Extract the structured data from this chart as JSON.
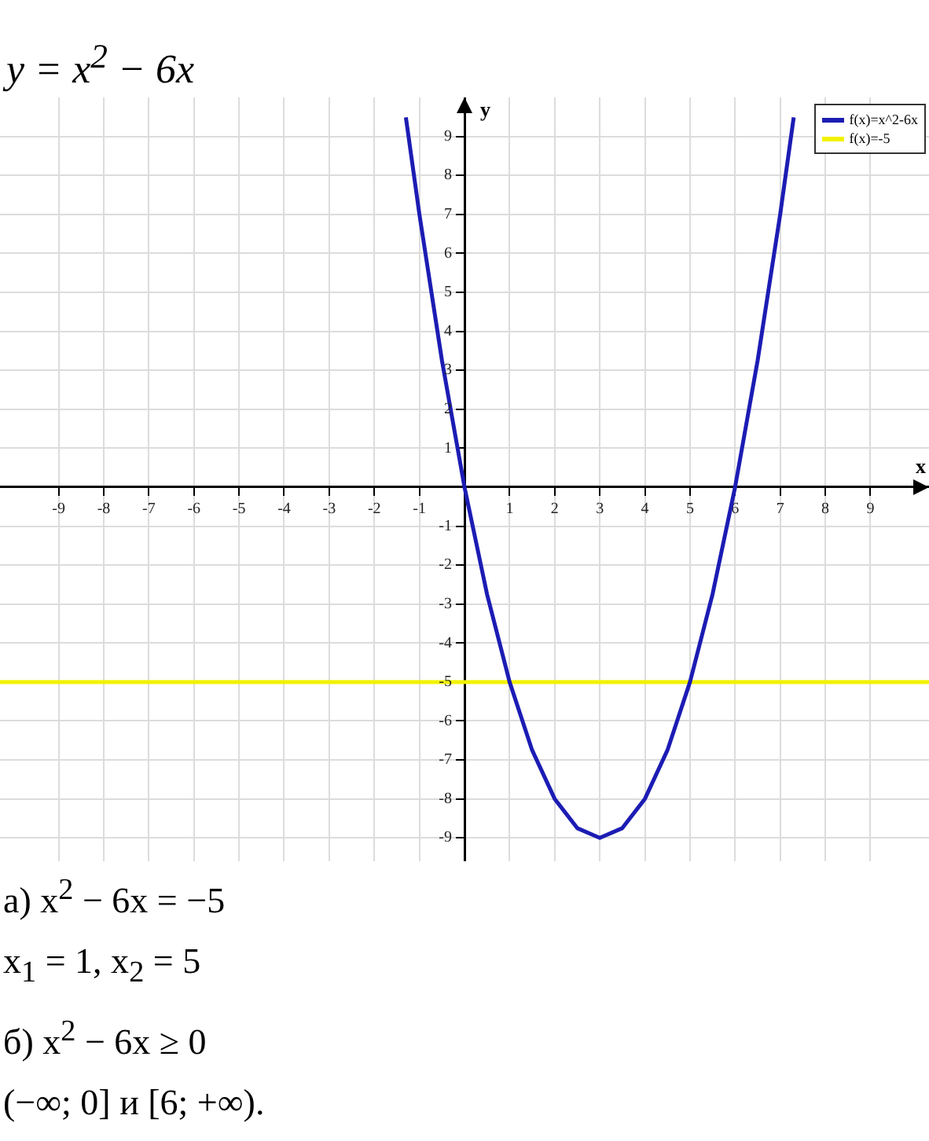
{
  "chart_data": {
    "type": "line",
    "title": "y = x$^{2}$ − 6x",
    "xlabel": "x",
    "ylabel": "y",
    "xlim": [
      -10.3,
      10.3
    ],
    "ylim": [
      -9.6,
      10
    ],
    "xticks": [
      -9,
      -8,
      -7,
      -6,
      -5,
      -4,
      -3,
      -2,
      -1,
      {
        "value": 0,
        "label": null
      },
      1,
      2,
      3,
      4,
      5,
      6,
      7,
      8,
      9
    ],
    "yticks": [
      -9,
      -8,
      -7,
      -6,
      -5,
      -4,
      -3,
      -2,
      -1,
      {
        "value": 0,
        "label": null
      },
      1,
      2,
      3,
      4,
      5,
      6,
      7,
      8,
      9
    ],
    "grid": true,
    "legend": "top right",
    "marker": "none",
    "line_style": "solid",
    "series": [
      {
        "name": "f(x)=x^2-6x",
        "color": "#1c1cb4",
        "x": [
          -1.3,
          -1,
          -0.5,
          0,
          0.5,
          1,
          1.5,
          2,
          2.5,
          3,
          3.5,
          4,
          4.5,
          5,
          5.5,
          6,
          6.5,
          7,
          7.3
        ],
        "values": [
          9.49,
          7,
          3.25,
          0,
          -2.75,
          -5,
          -6.75,
          -8,
          -8.75,
          -9,
          -8.75,
          -8,
          -6.75,
          -5,
          -2.75,
          0,
          3.25,
          7,
          9.49
        ]
      },
      {
        "name": "f(x)=-5",
        "color": "#f2f200",
        "x": [
          -10.3,
          10.3
        ],
        "values": [
          -5,
          -5
        ]
      }
    ],
    "annotations": [
      "а) x$^{2}$ − 6x = −5",
      "x$_{1}$ = 1,    x$_{2}$ = 5",
      "б) x$^{2}$ − 6x ≥ 0",
      "(−∞; 0] и [6; +∞)."
    ]
  }
}
